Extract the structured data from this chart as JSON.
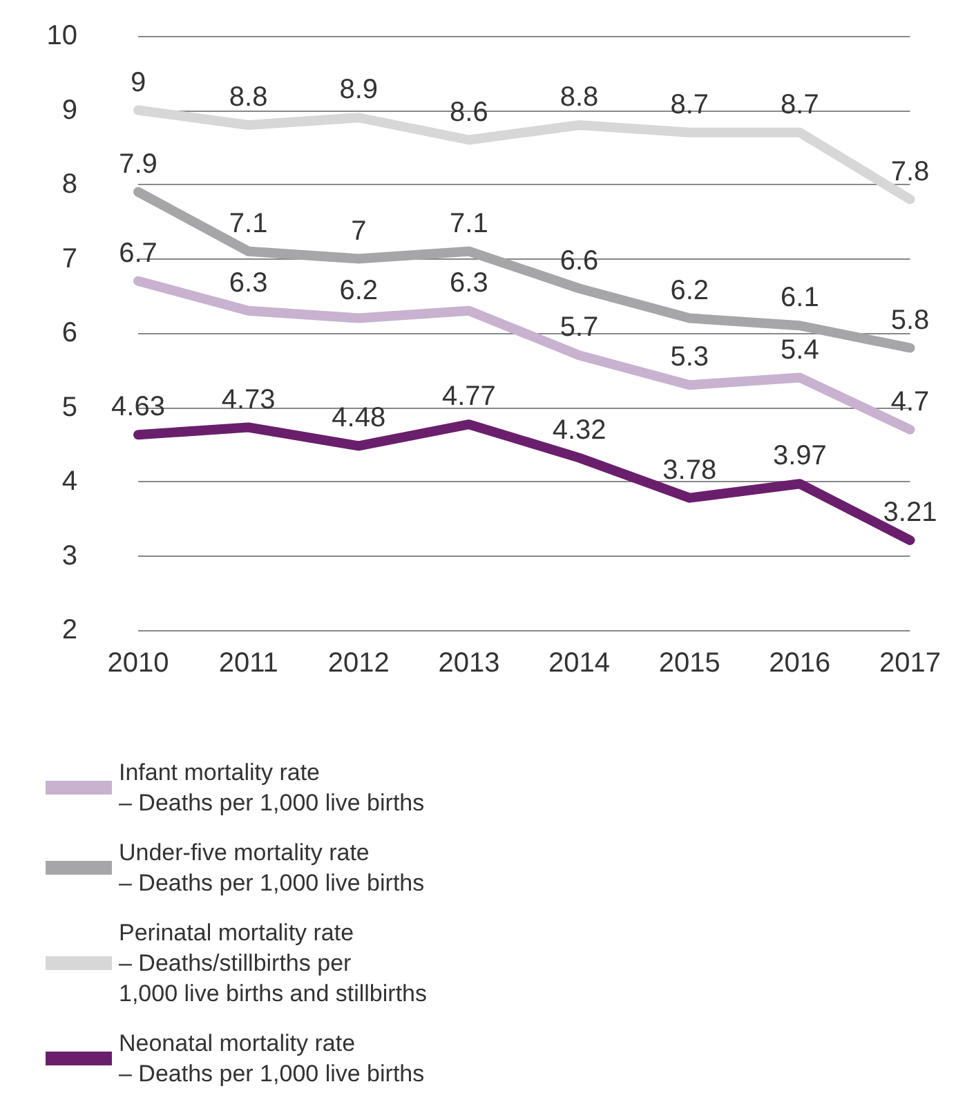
{
  "chart_data": {
    "type": "line",
    "categories": [
      "2010",
      "2011",
      "2012",
      "2013",
      "2014",
      "2015",
      "2016",
      "2017"
    ],
    "series": [
      {
        "name": "Infant mortality rate\n– Deaths per 1,000 live births",
        "color": "#c8b2d0",
        "values": [
          6.7,
          6.3,
          6.2,
          6.3,
          5.7,
          5.3,
          5.4,
          4.7
        ]
      },
      {
        "name": "Under-five mortality rate\n– Deaths per 1,000 live births",
        "color": "#a6a6a9",
        "values": [
          7.9,
          7.1,
          7,
          7.1,
          6.6,
          6.2,
          6.1,
          5.8
        ]
      },
      {
        "name": "Perinatal mortality rate\n– Deaths/stillbirths per\n1,000 live births and stillbirths",
        "color": "#d7d7d7",
        "values": [
          9,
          8.8,
          8.9,
          8.6,
          8.8,
          8.7,
          8.7,
          7.8
        ]
      },
      {
        "name": "Neonatal mortality rate\n– Deaths per 1,000 live births",
        "color": "#6a1f6c",
        "values": [
          4.63,
          4.73,
          4.48,
          4.77,
          4.32,
          3.78,
          3.97,
          3.21
        ]
      }
    ],
    "ylim": [
      2,
      10
    ],
    "yticks": [
      2,
      3,
      4,
      5,
      6,
      7,
      8,
      9,
      10
    ],
    "grid": "y",
    "legend": "bottom left",
    "data_labels": true,
    "marker": "none",
    "line_style": "solid"
  }
}
